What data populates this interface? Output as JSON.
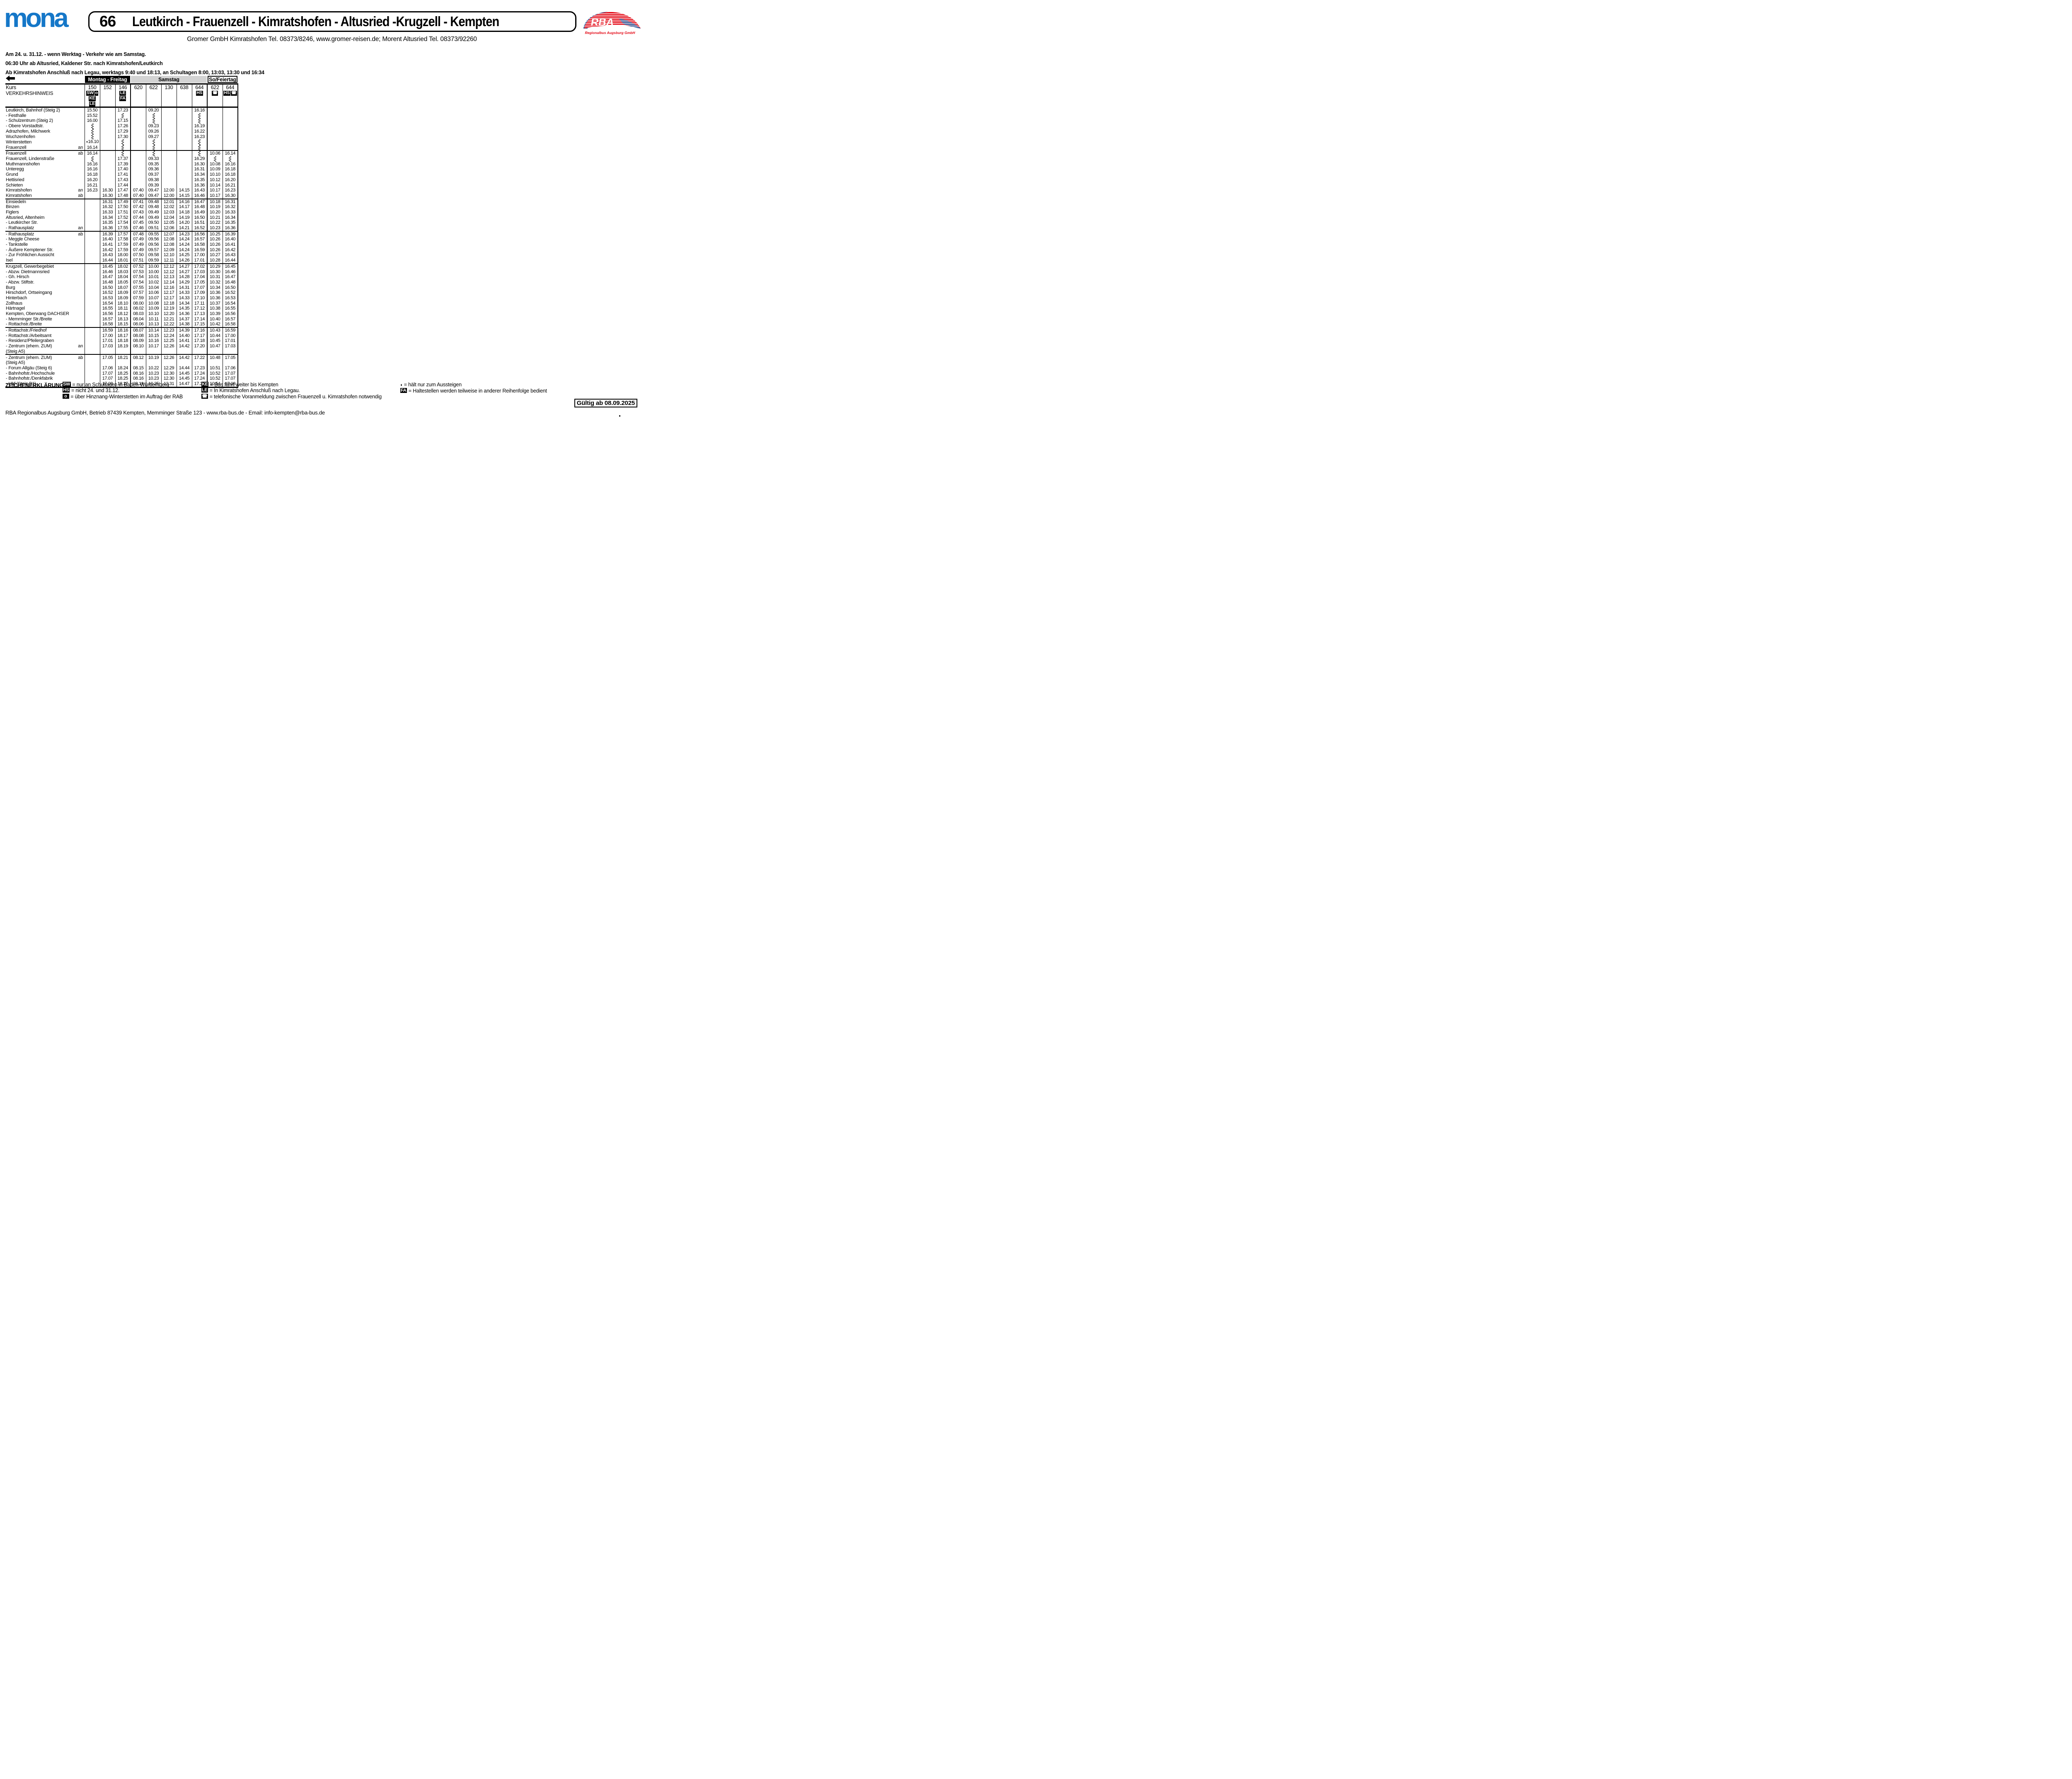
{
  "header": {
    "brand": "mona",
    "route_number": "66",
    "route_title": "Leutkirch - Frauenzell - Kimratshofen - Altusried -Krugzell - Kempten",
    "operator_line": "Gromer GmbH Kimratshofen Tel. 08373/8246, www.gromer-reisen.de; Morent Altusried Tel.  08373/92260",
    "rba_text": "RBA",
    "rba_caption": "Regionalbus Augsburg GmbH"
  },
  "colors": {
    "brand_blue": "#1577c8",
    "rba_red": "#e30613",
    "rba_blue": "#004a99",
    "samstag_gray": "#d3d3d3"
  },
  "icons": {
    "arrow-left-icon": "⬅",
    "phone-icon": "☎",
    "alight-only-icon": "◖",
    "squiggle-icon": "vertical zigzag (no stop / runs through)"
  },
  "notes": [
    "Am 24. u. 31.12. - wenn Werktag - Verkehr wie am Samstag.",
    "06:30 Uhr ab Altusried, Kaldener Str. nach Kimratshofen/Leutkirch",
    "Ab Kimratshofen Anschluß nach Legau, werktags 9:40 und 18:13, an Schultagen 8:00, 13:03, 13:30 und 16:34"
  ],
  "table": {
    "kurs_label": "Kurs",
    "hinweis_label": "VERKEHRSHINWEIS",
    "day_groups": [
      {
        "label": "Montag - Freitag",
        "cols": 3,
        "style": "black"
      },
      {
        "label": "Samstag",
        "cols": 5,
        "style": "gray"
      },
      {
        "label": "So/Feiertag",
        "cols": 2,
        "style": "white"
      }
    ],
    "columns": [
      {
        "kurs": "150",
        "badges": [
          [
            "SW",
            "o"
          ],
          [
            "KE"
          ],
          [
            "LE"
          ]
        ]
      },
      {
        "kurs": "152",
        "badges": []
      },
      {
        "kurs": "146",
        "badges": [
          [
            "LE"
          ],
          [
            "FA"
          ]
        ]
      },
      {
        "kurs": "620",
        "badges": []
      },
      {
        "kurs": "622",
        "badges": []
      },
      {
        "kurs": "130",
        "badges": []
      },
      {
        "kurs": "638",
        "badges": []
      },
      {
        "kurs": "644",
        "badges": [
          [
            "HS"
          ]
        ]
      },
      {
        "kurs": "622",
        "badges": [
          [
            "☎"
          ]
        ]
      },
      {
        "kurs": "644",
        "badges": [
          [
            "HS",
            "☎"
          ]
        ]
      }
    ],
    "blocks": [
      [
        {
          "name": "Leutkirch, Bahnhof (Steig 2)",
          "anab": "",
          "times": [
            "15.50",
            "",
            "17.23",
            "",
            "09.20",
            "",
            "",
            "16.16",
            "",
            ""
          ]
        },
        {
          "name": "- Festhalle",
          "anab": "",
          "times": [
            "15.52",
            "",
            "~",
            "",
            "~",
            "",
            "",
            "~",
            "",
            ""
          ]
        },
        {
          "name": "- Schulzentrum (Steig 2)",
          "anab": "",
          "times": [
            "16.00",
            "",
            "17.15",
            "",
            "~",
            "",
            "",
            "~",
            "",
            ""
          ]
        },
        {
          "name": "- Obere Vorstadtstr.",
          "anab": "",
          "times": [
            "~",
            "",
            "17.26",
            "",
            "09.23",
            "",
            "",
            "16.19",
            "",
            ""
          ]
        },
        {
          "name": "Adrazhofen, Milchwerk",
          "anab": "",
          "times": [
            "~",
            "",
            "17.29",
            "",
            "09.26",
            "",
            "",
            "16.22",
            "",
            ""
          ]
        },
        {
          "name": "Wuchzenhofen",
          "anab": "",
          "times": [
            "~",
            "",
            "17.30",
            "",
            "09.27",
            "",
            "",
            "16.23",
            "",
            ""
          ]
        },
        {
          "name": "Winterstetten",
          "anab": "",
          "times": [
            "◖16.10",
            "",
            "~",
            "",
            "~",
            "",
            "",
            "~",
            "",
            ""
          ]
        },
        {
          "name": "Frauenzell",
          "anab": "an",
          "times": [
            "16.14",
            "",
            "~",
            "",
            "~",
            "",
            "",
            "~",
            "",
            ""
          ]
        }
      ],
      [
        {
          "name": "Frauenzell",
          "anab": "ab",
          "times": [
            "16.14",
            "",
            "~",
            "",
            "~",
            "",
            "",
            "~",
            "10.06",
            "16.14"
          ]
        },
        {
          "name": "Frauenzell, Lindenstraße",
          "anab": "",
          "times": [
            "~",
            "",
            "17.37",
            "",
            "09.33",
            "",
            "",
            "16.29",
            "~",
            "~"
          ]
        },
        {
          "name": "Muthmannshofen",
          "anab": "",
          "times": [
            "16.16",
            "",
            "17.39",
            "",
            "09.35",
            "",
            "",
            "16.30",
            "10.08",
            "16.16"
          ]
        },
        {
          "name": "Unteregg",
          "anab": "",
          "times": [
            "16.16",
            "",
            "17.40",
            "",
            "09.36",
            "",
            "",
            "16.31",
            "10.09",
            "16.18"
          ]
        },
        {
          "name": "Grund",
          "anab": "",
          "times": [
            "16.18",
            "",
            "17.41",
            "",
            "09.37",
            "",
            "",
            "16.34",
            "10.10",
            "16.18"
          ]
        },
        {
          "name": "Hettisried",
          "anab": "",
          "times": [
            "16.20",
            "",
            "17.43",
            "",
            "09.38",
            "",
            "",
            "16.35",
            "10.12",
            "16.20"
          ]
        },
        {
          "name": "Schieten",
          "anab": "",
          "times": [
            "16.21",
            "",
            "17.44",
            "",
            "09.39",
            "",
            "",
            "16.36",
            "10.14",
            "16.21"
          ]
        },
        {
          "name": "Kimratshofen",
          "anab": "an",
          "times": [
            "16.23",
            "16.30",
            "17.47",
            "07.40",
            "09.47",
            "12.00",
            "14.15",
            "16.43",
            "10.17",
            "16.23"
          ]
        },
        {
          "name": "Kimratshofen",
          "anab": "ab",
          "times": [
            "",
            "16.30",
            "17.48",
            "07.40",
            "09.47",
            "12.00",
            "14.15",
            "16.46",
            "10.17",
            "16.30"
          ]
        }
      ],
      [
        {
          "name": "Einsiedeln",
          "anab": "",
          "times": [
            "",
            "16.31",
            "17.49",
            "07.41",
            "09.48",
            "12.01",
            "14.16",
            "16.47",
            "10.18",
            "16.31"
          ]
        },
        {
          "name": "Binzen",
          "anab": "",
          "times": [
            "",
            "16.32",
            "17.50",
            "07.42",
            "09.48",
            "12.02",
            "14.17",
            "16.48",
            "10.19",
            "16.32"
          ]
        },
        {
          "name": "Figlers",
          "anab": "",
          "times": [
            "",
            "16.33",
            "17.51",
            "07.43",
            "09.49",
            "12.03",
            "14.18",
            "16.49",
            "10.20",
            "16.33"
          ]
        },
        {
          "name": "Altusried, Altenheim",
          "anab": "",
          "times": [
            "",
            "16.34",
            "17.52",
            "07.44",
            "09.49",
            "12.04",
            "14.19",
            "16.50",
            "10.21",
            "16.34"
          ]
        },
        {
          "name": "- Leutkircher Str.",
          "anab": "",
          "times": [
            "",
            "16.35",
            "17.54",
            "07.45",
            "09.50",
            "12.05",
            "14.20",
            "16.51",
            "10.22",
            "16.35"
          ]
        },
        {
          "name": "- Rathausplatz",
          "anab": "an",
          "times": [
            "",
            "16.36",
            "17.55",
            "07.46",
            "09.51",
            "12.06",
            "14.21",
            "16.52",
            "10.23",
            "16.36"
          ]
        }
      ],
      [
        {
          "name": "- Rathausplatz",
          "anab": "ab",
          "times": [
            "",
            "16.39",
            "17.57",
            "07.48",
            "09.55",
            "12.07",
            "14.23",
            "16.56",
            "10.25",
            "16.39"
          ]
        },
        {
          "name": "- Meggle Cheese",
          "anab": "",
          "times": [
            "",
            "16.40",
            "17.58",
            "07.49",
            "09.56",
            "12.08",
            "14.24",
            "16.57",
            "10.26",
            "16.40"
          ]
        },
        {
          "name": "- Tankstelle",
          "anab": "",
          "times": [
            "",
            "16.41",
            "17.59",
            "07.49",
            "09.56",
            "12.08",
            "14.24",
            "16.58",
            "10.26",
            "16.41"
          ]
        },
        {
          "name": "- Äußere Kemptener Str.",
          "anab": "",
          "times": [
            "",
            "16.42",
            "17.59",
            "07.49",
            "09.57",
            "12.09",
            "14.24",
            "16.59",
            "10.26",
            "16.42"
          ]
        },
        {
          "name": "- Zur Fröhlichen Aussicht",
          "anab": "",
          "times": [
            "",
            "16.43",
            "18.00",
            "07.50",
            "09.58",
            "12.10",
            "14.25",
            "17.00",
            "10.27",
            "16.43"
          ]
        },
        {
          "name": "Isel",
          "anab": "",
          "times": [
            "",
            "16.44",
            "18.01",
            "07.51",
            "09.59",
            "12.11",
            "14.26",
            "17.01",
            "10.28",
            "16.44"
          ]
        }
      ],
      [
        {
          "name": "Krugzell, Gewerbegebiet",
          "anab": "",
          "times": [
            "",
            "16.45",
            "18.02",
            "07.52",
            "10.00",
            "12.12",
            "14.27",
            "17.02",
            "10.29",
            "16.45"
          ]
        },
        {
          "name": "- Abzw. Dietmannsried",
          "anab": "",
          "times": [
            "",
            "16.46",
            "18.03",
            "07.53",
            "10.00",
            "12.12",
            "14.27",
            "17.03",
            "10.30",
            "16.46"
          ]
        },
        {
          "name": "- Gh. Hirsch",
          "anab": "",
          "times": [
            "",
            "16.47",
            "18.04",
            "07.54",
            "10.01",
            "12.13",
            "14.28",
            "17.04",
            "10.31",
            "16.47"
          ]
        },
        {
          "name": "- Abzw. Stiftstr.",
          "anab": "",
          "times": [
            "",
            "16.48",
            "18.05",
            "07.54",
            "10.02",
            "12.14",
            "14.29",
            "17.05",
            "10.32",
            "16.48"
          ]
        },
        {
          "name": "Burg",
          "anab": "",
          "times": [
            "",
            "16.50",
            "18.07",
            "07.55",
            "10.04",
            "12.16",
            "14.31",
            "17.07",
            "10.34",
            "16.50"
          ]
        },
        {
          "name": "Hirschdorf, Ortseingang",
          "anab": "",
          "times": [
            "",
            "16.52",
            "18.09",
            "07.57",
            "10.06",
            "12.17",
            "14.33",
            "17.09",
            "10.36",
            "16.52"
          ]
        },
        {
          "name": "Hinterbach",
          "anab": "",
          "times": [
            "",
            "16.53",
            "18.09",
            "07.59",
            "10.07",
            "12.17",
            "14.33",
            "17.10",
            "10.36",
            "16.53"
          ]
        },
        {
          "name": "Zollhaus",
          "anab": "",
          "times": [
            "",
            "16.54",
            "18.10",
            "08.00",
            "10.08",
            "12.18",
            "14.34",
            "17.11",
            "10.37",
            "16.54"
          ]
        },
        {
          "name": "Härtnagel",
          "anab": "",
          "times": [
            "",
            "16.55",
            "18.11",
            "08.02",
            "10.09",
            "12.19",
            "14.35",
            "17.12",
            "10.38",
            "16.55"
          ]
        },
        {
          "name": "Kempten, Oberwang DACHSER",
          "anab": "",
          "times": [
            "",
            "16.56",
            "18.12",
            "08.03",
            "10.10",
            "12.20",
            "14.36",
            "17.13",
            "10.39",
            "16.56"
          ]
        },
        {
          "name": "- Memminger Str./Breite",
          "anab": "",
          "times": [
            "",
            "16.57",
            "18.13",
            "08.04",
            "10.11",
            "12.21",
            "14.37",
            "17.14",
            "10.40",
            "16.57"
          ]
        },
        {
          "name": "- Rottachstr./Breite",
          "anab": "",
          "times": [
            "",
            "16.58",
            "18.15",
            "08.06",
            "10.13",
            "12.22",
            "14.38",
            "17.15",
            "10.42",
            "16.58"
          ]
        }
      ],
      [
        {
          "name": "- Rottachstr./Friedhof",
          "anab": "",
          "times": [
            "",
            "16.59",
            "18.16",
            "08.07",
            "10.14",
            "12.23",
            "14.39",
            "17.16",
            "10.43",
            "16.59"
          ]
        },
        {
          "name": "- Rottachstr./Arbeitsamt",
          "anab": "",
          "times": [
            "",
            "17.00",
            "18.17",
            "08.08",
            "10.15",
            "12.24",
            "14.40",
            "17.17",
            "10.44",
            "17.00"
          ]
        },
        {
          "name": "- Residenz/Pfeilergraben",
          "anab": "",
          "times": [
            "",
            "17.01",
            "18.18",
            "08.09",
            "10.16",
            "12.25",
            "14.41",
            "17.18",
            "10.45",
            "17.01"
          ]
        },
        {
          "name": "- Zentrum (ehem. ZUM)",
          "anab": "an",
          "times": [
            "",
            "17.03",
            "18.19",
            "08.10",
            "10.17",
            "12.26",
            "14.42",
            "17.20",
            "10.47",
            "17.03"
          ]
        },
        {
          "name": "(Steig A5)",
          "anab": "",
          "times": [
            "",
            "",
            "",
            "",
            "",
            "",
            "",
            "",
            "",
            ""
          ]
        }
      ],
      [
        {
          "name": "- Zentrum (ehem. ZUM)",
          "anab": "ab",
          "times": [
            "",
            "17.05",
            "18.21",
            "08.12",
            "10.19",
            "12.26",
            "14.42",
            "17.22",
            "10.48",
            "17.05"
          ]
        },
        {
          "name": "(Steig A5)",
          "anab": "",
          "times": [
            "",
            "",
            "",
            "",
            "",
            "",
            "",
            "",
            "",
            ""
          ]
        },
        {
          "name": "- Forum Allgäu (Steig 6)",
          "anab": "",
          "times": [
            "",
            "17.06",
            "18.24",
            "08.15",
            "10.22",
            "12.29",
            "14.44",
            "17.23",
            "10.51",
            "17.06"
          ]
        },
        {
          "name": "- Bahnhofstr./Hochschule",
          "anab": "",
          "times": [
            "",
            "17.07",
            "18.25",
            "08.16",
            "10.23",
            "12.30",
            "14.45",
            "17.24",
            "10.52",
            "17.07"
          ]
        },
        {
          "name": "- Bahnhofstr./Denkfabrik",
          "anab": "",
          "times": [
            "",
            "17.07",
            "18.25",
            "08.16",
            "10.23",
            "12.30",
            "14.45",
            "17.24",
            "10.52",
            "17.07"
          ]
        },
        {
          "name": "- Hbf (Steig B1)",
          "anab": "",
          "times": [
            "",
            "17.08",
            "18.27",
            "08.19",
            "10.25",
            "12.31",
            "14.47",
            "17.25",
            "10.54",
            "17.08"
          ]
        }
      ]
    ]
  },
  "legend": {
    "title": "ZEICHENERKLÄRUNG:",
    "columns": [
      [
        {
          "sym": "SW",
          "chip": true,
          "text": "= nur an Schultagen in Baden-Württemberg"
        },
        {
          "sym": "HS",
          "chip": true,
          "text": "= nicht 24. und 31.12."
        },
        {
          "sym": "o",
          "chip": true,
          "text": "= über Hinznang-Winterstetten im Auftrag der RAB"
        }
      ],
      [
        {
          "sym": "KE",
          "chip": true,
          "text": "= Bus fährt weiter bis Kempten"
        },
        {
          "sym": "LE",
          "chip": true,
          "text": "= In Kimratshofen Anschluß nach Legau."
        },
        {
          "sym": "☎",
          "chip": true,
          "text": "= telefonische Voranmeldung zwischen Frauenzell u. Kimratshofen notwendig"
        }
      ],
      [
        {
          "sym": "◖",
          "chip": false,
          "text": "= hält nur zum Aussteigen"
        },
        {
          "sym": "FA",
          "chip": true,
          "text": "= Haltestellen werden teilweise in anderer Reihenfolge bedient"
        }
      ]
    ]
  },
  "footer": {
    "info": "RBA Regionalbus Augsburg GmbH, Betrieb 87439 Kempten, Memminger Straße 123 - www.rba-bus.de - Email: info-kempten@rba-bus.de",
    "valid_from": "Gültig ab 08.09.2025"
  }
}
